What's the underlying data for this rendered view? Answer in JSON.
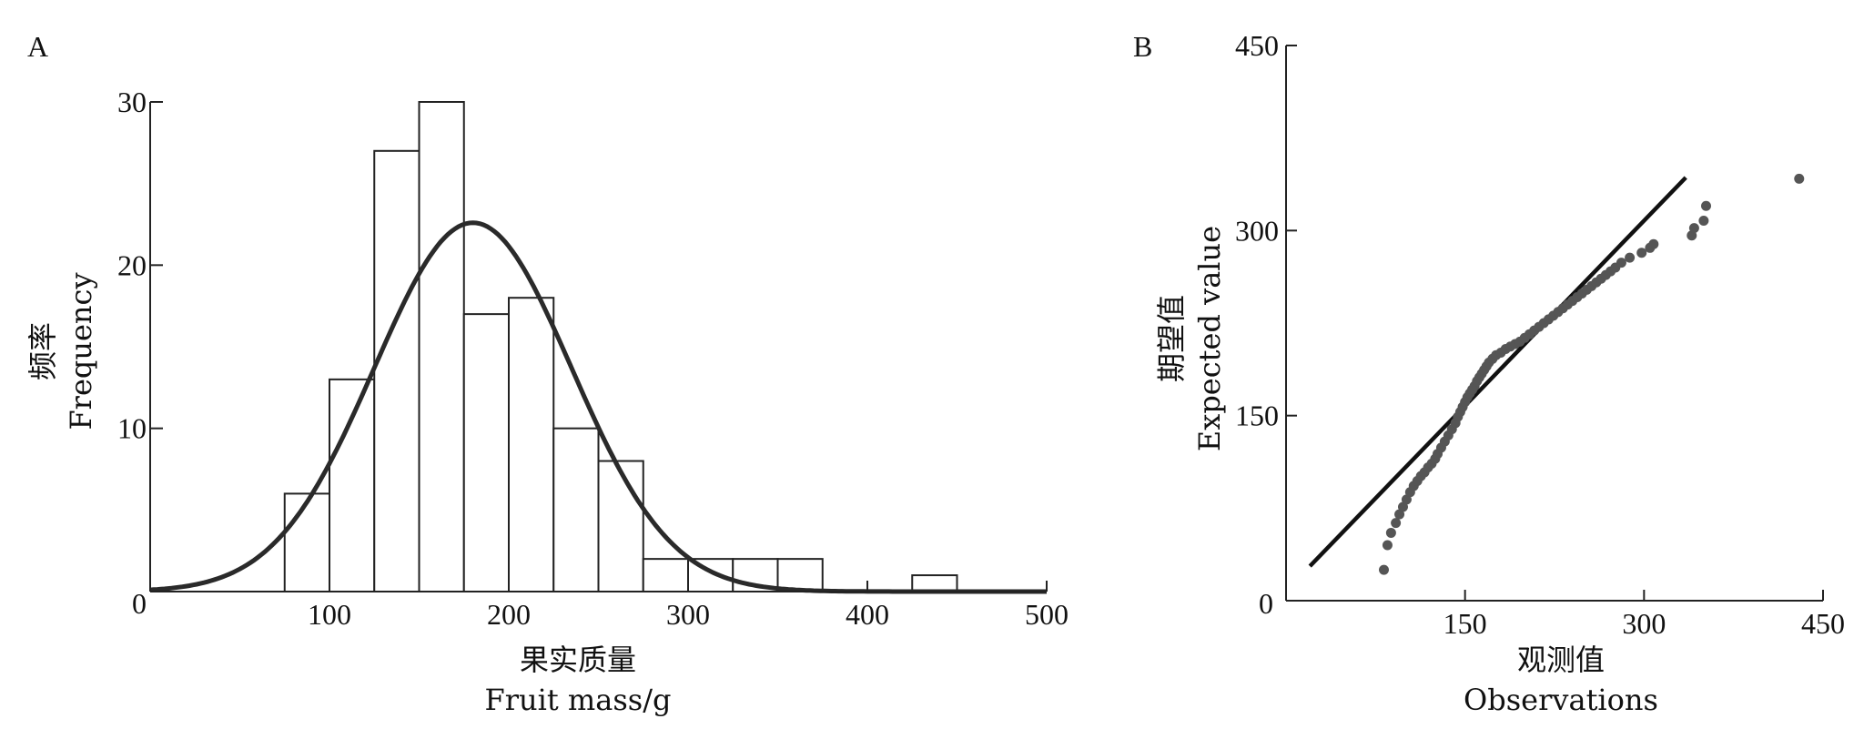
{
  "chart_data": [
    {
      "type": "bar",
      "panel_label": "A",
      "xlabel_cn": "果实质量",
      "xlabel": "Fruit mass/g",
      "ylabel_cn": "频率",
      "ylabel": "Frequency",
      "xlim": [
        0,
        500
      ],
      "ylim": [
        0,
        30
      ],
      "x_ticks": [
        "100",
        "200",
        "300",
        "400",
        "500"
      ],
      "x_origin_label": "0",
      "y_ticks": [
        "10",
        "20",
        "30"
      ],
      "bins": [
        {
          "x0": 75,
          "x1": 100,
          "count": 6
        },
        {
          "x0": 100,
          "x1": 125,
          "count": 13
        },
        {
          "x0": 125,
          "x1": 150,
          "count": 27
        },
        {
          "x0": 150,
          "x1": 175,
          "count": 30
        },
        {
          "x0": 175,
          "x1": 200,
          "count": 17
        },
        {
          "x0": 200,
          "x1": 225,
          "count": 18
        },
        {
          "x0": 225,
          "x1": 250,
          "count": 10
        },
        {
          "x0": 250,
          "x1": 275,
          "count": 8
        },
        {
          "x0": 275,
          "x1": 300,
          "count": 2
        },
        {
          "x0": 300,
          "x1": 325,
          "count": 2
        },
        {
          "x0": 325,
          "x1": 350,
          "count": 2
        },
        {
          "x0": 350,
          "x1": 375,
          "count": 2
        },
        {
          "x0": 425,
          "x1": 450,
          "count": 1
        }
      ],
      "normal_curve": {
        "mean": 180,
        "sd": 55,
        "peak": 22.6
      }
    },
    {
      "type": "scatter",
      "panel_label": "B",
      "xlabel_cn": "观测值",
      "xlabel": "Observations",
      "ylabel_cn": "期望值",
      "ylabel": "Expected value",
      "xlim": [
        0,
        450
      ],
      "ylim": [
        0,
        450
      ],
      "x_ticks": [
        "150",
        "300",
        "450"
      ],
      "y_ticks": [
        "150",
        "300",
        "450"
      ],
      "origin_label": "0",
      "reference_line": {
        "x": [
          20,
          335
        ],
        "y": [
          28,
          343
        ]
      },
      "points": [
        [
          82,
          25
        ],
        [
          85,
          45
        ],
        [
          88,
          55
        ],
        [
          92,
          63
        ],
        [
          95,
          70
        ],
        [
          98,
          76
        ],
        [
          101,
          82
        ],
        [
          104,
          88
        ],
        [
          107,
          93
        ],
        [
          110,
          97
        ],
        [
          113,
          101
        ],
        [
          116,
          104
        ],
        [
          119,
          108
        ],
        [
          122,
          111
        ],
        [
          125,
          115
        ],
        [
          127,
          119
        ],
        [
          130,
          124
        ],
        [
          133,
          129
        ],
        [
          136,
          134
        ],
        [
          139,
          139
        ],
        [
          142,
          144
        ],
        [
          144,
          149
        ],
        [
          146,
          153
        ],
        [
          148,
          157
        ],
        [
          150,
          161
        ],
        [
          152,
          165
        ],
        [
          154,
          168
        ],
        [
          156,
          171
        ],
        [
          158,
          174
        ],
        [
          160,
          178
        ],
        [
          162,
          181
        ],
        [
          164,
          184
        ],
        [
          166,
          187
        ],
        [
          168,
          190
        ],
        [
          170,
          193
        ],
        [
          173,
          196
        ],
        [
          176,
          199
        ],
        [
          180,
          201
        ],
        [
          184,
          204
        ],
        [
          188,
          206
        ],
        [
          192,
          208
        ],
        [
          196,
          210
        ],
        [
          200,
          213
        ],
        [
          204,
          216
        ],
        [
          208,
          219
        ],
        [
          212,
          222
        ],
        [
          216,
          225
        ],
        [
          220,
          228
        ],
        [
          224,
          231
        ],
        [
          228,
          234
        ],
        [
          232,
          237
        ],
        [
          236,
          240
        ],
        [
          240,
          243
        ],
        [
          244,
          246
        ],
        [
          248,
          249
        ],
        [
          252,
          252
        ],
        [
          256,
          255
        ],
        [
          260,
          258
        ],
        [
          264,
          261
        ],
        [
          268,
          264
        ],
        [
          272,
          267
        ],
        [
          276,
          270
        ],
        [
          281,
          274
        ],
        [
          288,
          278
        ],
        [
          298,
          282
        ],
        [
          305,
          286
        ],
        [
          308,
          289
        ],
        [
          340,
          296
        ],
        [
          342,
          302
        ],
        [
          350,
          308
        ],
        [
          352,
          320
        ],
        [
          430,
          342
        ]
      ]
    }
  ]
}
